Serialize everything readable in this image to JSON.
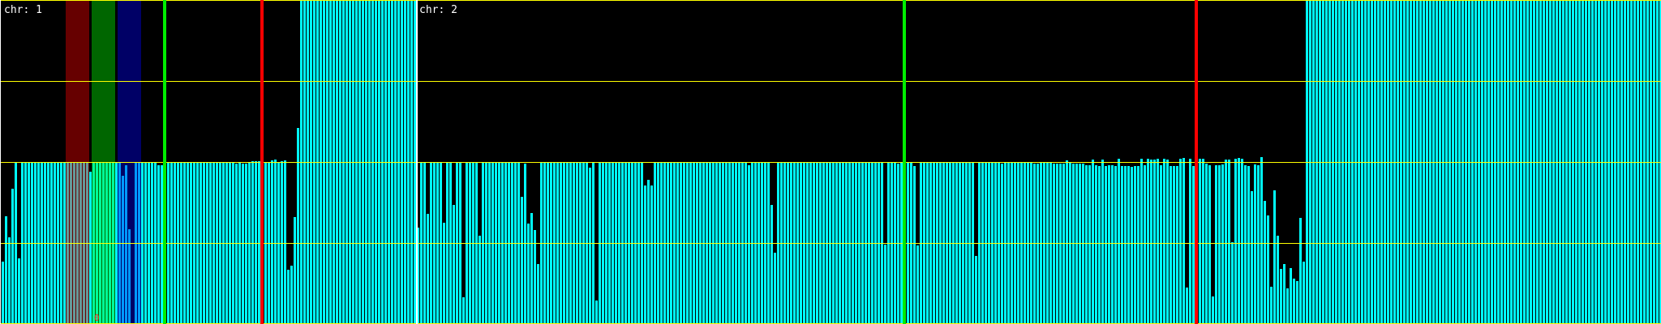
{
  "chart_data": {
    "type": "bar",
    "ylim": [
      0,
      4
    ],
    "grid_y": [
      0,
      1,
      2,
      3,
      4
    ],
    "grid": true,
    "colors": {
      "background": "#000000",
      "bar": "#00ffff",
      "grid": "#ffff00",
      "separator": "#ffffff",
      "marker_green": "#00ee00",
      "marker_red": "#ff0000",
      "band_red": "#ff0000",
      "band_green": "#00ff00",
      "band_blue": "#0000ff"
    },
    "chromosomes": [
      {
        "label": "chr: 1",
        "markers": [
          {
            "bin": 50,
            "color": "green"
          },
          {
            "bin": 80,
            "color": "red"
          }
        ],
        "bands": [
          {
            "from": 20,
            "to": 26,
            "color": "red"
          },
          {
            "from": 28,
            "to": 34,
            "color": "green",
            "label": "0"
          },
          {
            "from": 36,
            "to": 42,
            "color": "blue"
          }
        ],
        "values": [
          0.77,
          1.33,
          1.07,
          1.67,
          2,
          0.81,
          2,
          2,
          2,
          2,
          2,
          2,
          2,
          2,
          2,
          2,
          2,
          2,
          2,
          2,
          2,
          2,
          2,
          2,
          2,
          2,
          2,
          1.88,
          2,
          2,
          2,
          2,
          2,
          2,
          2,
          2,
          2,
          1.83,
          1.96,
          1.17,
          0,
          2,
          2,
          2,
          2,
          2,
          2,
          2,
          1.96,
          1.96,
          2,
          2,
          2,
          2,
          2,
          2,
          2,
          2,
          2,
          2,
          2,
          2,
          2,
          2,
          2,
          2,
          2,
          2,
          2,
          2,
          2,
          2,
          1.98,
          2,
          1.98,
          1.98,
          2,
          2.01,
          2.01,
          2.01,
          2,
          2,
          2,
          2.02,
          2.03,
          2,
          2.01,
          2.02,
          0.67,
          0.72,
          1.32,
          2.42,
          4,
          4,
          4,
          4,
          4,
          4,
          4,
          4,
          4,
          4,
          4,
          4,
          4,
          4,
          4,
          4,
          4,
          4,
          4,
          4,
          4,
          4,
          4,
          4,
          4,
          4,
          4,
          4,
          4,
          4,
          4,
          4,
          4,
          4,
          4,
          4
        ]
      },
      {
        "label": "chr: 2",
        "markers": [
          {
            "bin": 150,
            "color": "green"
          },
          {
            "bin": 240,
            "color": "red"
          }
        ],
        "bands": [],
        "values": [
          1.19,
          2,
          2,
          1.36,
          2,
          2,
          2,
          2,
          1.25,
          2,
          2,
          1.47,
          2,
          2,
          0.33,
          2,
          2,
          2,
          2,
          1.09,
          2,
          2,
          2,
          2,
          2,
          2,
          2,
          2,
          2,
          2,
          2,
          2,
          1.57,
          1.98,
          1.24,
          1.37,
          1.16,
          0.74,
          2,
          2,
          2,
          2,
          2,
          2,
          2,
          2,
          2,
          2,
          2,
          2,
          2,
          2,
          2,
          1.93,
          2,
          0.29,
          2,
          2,
          2,
          2,
          2,
          2,
          2,
          2,
          2,
          2,
          2,
          2,
          2,
          2,
          1.71,
          1.78,
          1.71,
          2,
          2,
          2,
          2,
          2,
          2,
          2,
          2,
          2,
          2,
          2,
          2,
          2,
          2,
          2,
          2,
          2,
          2,
          2,
          2,
          2,
          2,
          2,
          2,
          2,
          2,
          2,
          2,
          2,
          1.96,
          2,
          2,
          2,
          2,
          2,
          2,
          1.47,
          0.88,
          2,
          2,
          2,
          2,
          2,
          2,
          2,
          2,
          2,
          2,
          2,
          2,
          2,
          2,
          2,
          2,
          2,
          2,
          2,
          2,
          2,
          2,
          2,
          2,
          2,
          2,
          2,
          2,
          2,
          2,
          2,
          2,
          2,
          0.98,
          2,
          2,
          2,
          1.98,
          2,
          2,
          2,
          2,
          1.95,
          0.97,
          2,
          2,
          2,
          2,
          2,
          2,
          2,
          2,
          2,
          2,
          2,
          2,
          2,
          2,
          2,
          2,
          2,
          0.84,
          2,
          2,
          2,
          2,
          2,
          2,
          2,
          1.98,
          2,
          2,
          2,
          2,
          2,
          2,
          2,
          2,
          2,
          1.98,
          1.98,
          2,
          2,
          2,
          2,
          1.98,
          1.98,
          1.98,
          1.98,
          2.02,
          2,
          1.98,
          1.98,
          1.98,
          1.98,
          1.96,
          1.96,
          2.03,
          1.96,
          1.95,
          2.03,
          1.95,
          1.96,
          1.96,
          1.95,
          2.04,
          1.95,
          1.95,
          1.95,
          1.94,
          1.95,
          1.95,
          2.04,
          1.96,
          2.04,
          2.03,
          2.03,
          2.04,
          1.96,
          2.04,
          2.03,
          1.95,
          1.95,
          1.95,
          2.04,
          2.05,
          0.45,
          2.04,
          1.95,
          2.04,
          2.04,
          2.04,
          1.98,
          1.96,
          0.34,
          1.96,
          1.96,
          1.97,
          2.03,
          2.03,
          1.01,
          2.04,
          2.05,
          2.04,
          1.96,
          1.95,
          1.64,
          1.97,
          1.96,
          2.06,
          1.52,
          1.34,
          0.46,
          1.65,
          1.09,
          0.68,
          0.74,
          0.44,
          0.69,
          0.56,
          0.53,
          1.31,
          0.77,
          4,
          4,
          4,
          4,
          4,
          4,
          4,
          4,
          4,
          4,
          4,
          4,
          4,
          4,
          4,
          4,
          4,
          4,
          4,
          4,
          4,
          4,
          4,
          4,
          4,
          4,
          4,
          4,
          4,
          4,
          4,
          4,
          4,
          4,
          4,
          4,
          4,
          4,
          4,
          4,
          4,
          4,
          4,
          4,
          4,
          4,
          4,
          4,
          4,
          4,
          4,
          4,
          4,
          4,
          4,
          4,
          4,
          4,
          4,
          4,
          4,
          4,
          4,
          4,
          4,
          4,
          4,
          4,
          4,
          4,
          4,
          4,
          4,
          4,
          4,
          4,
          4,
          4,
          4,
          4,
          4,
          4,
          4,
          4,
          4,
          4,
          4,
          4,
          4,
          4,
          4,
          4,
          4,
          4,
          4,
          4,
          4,
          4,
          4,
          4,
          4,
          4,
          4,
          4,
          4,
          4,
          4,
          4,
          4,
          4
        ]
      }
    ]
  }
}
